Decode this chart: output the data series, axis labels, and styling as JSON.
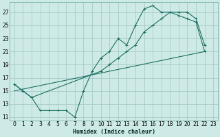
{
  "xlabel": "Humidex (Indice chaleur)",
  "bg_color": "#ceeae6",
  "grid_color": "#a8ccc8",
  "line_color": "#1a6e62",
  "xlim": [
    -0.5,
    23.5
  ],
  "ylim": [
    10.5,
    28.5
  ],
  "xticks": [
    0,
    1,
    2,
    3,
    4,
    5,
    6,
    7,
    8,
    9,
    10,
    11,
    12,
    13,
    14,
    15,
    16,
    17,
    18,
    19,
    20,
    21,
    22,
    23
  ],
  "yticks": [
    11,
    13,
    15,
    17,
    19,
    21,
    23,
    25,
    27
  ],
  "series1_x": [
    0,
    1,
    2,
    3,
    4,
    5,
    6,
    7,
    8,
    9,
    10,
    11,
    12,
    13,
    14,
    15,
    16,
    17,
    18,
    19,
    20,
    21,
    22
  ],
  "series1_y": [
    16,
    15,
    14,
    12,
    12,
    12,
    12,
    11,
    15,
    18,
    20,
    21,
    23,
    22,
    25,
    27.5,
    28,
    27,
    27,
    26.5,
    26,
    25.5,
    21
  ],
  "series2_x": [
    0,
    1,
    2,
    10,
    11,
    12,
    13,
    14,
    15,
    16,
    17,
    18,
    19,
    20,
    21,
    22
  ],
  "series2_y": [
    16,
    15,
    14,
    18,
    19,
    20,
    21,
    22,
    24,
    25,
    26,
    27,
    27,
    27,
    26,
    22
  ],
  "series3_x": [
    0,
    22
  ],
  "series3_y": [
    15,
    21
  ]
}
